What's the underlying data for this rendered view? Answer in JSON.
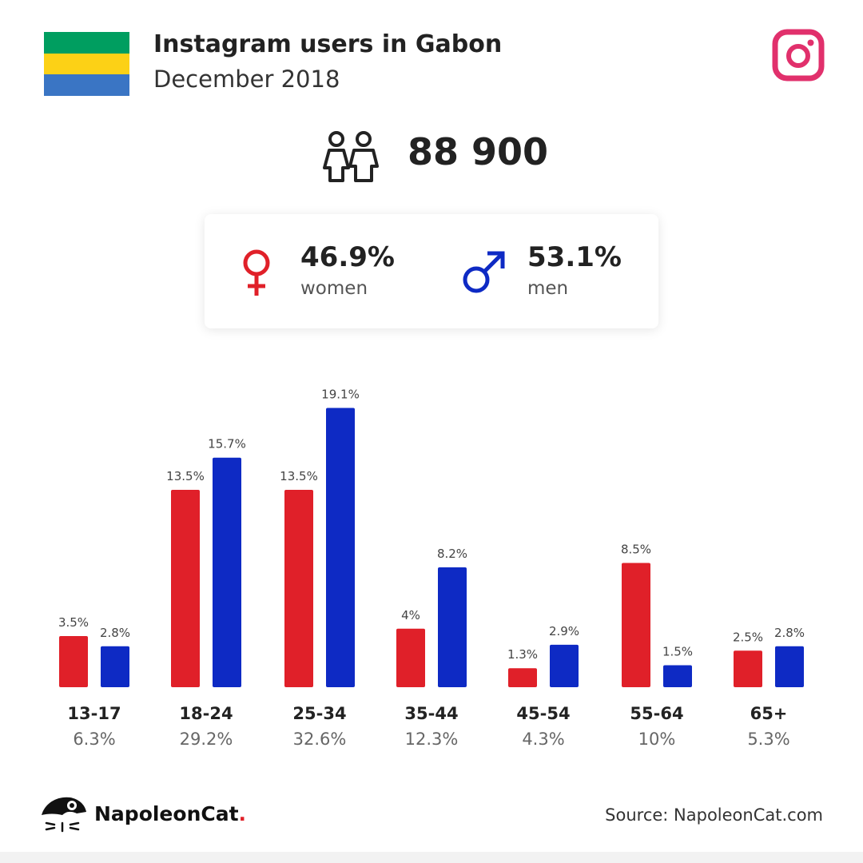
{
  "header": {
    "title": "Instagram users in Gabon",
    "subtitle": "December 2018",
    "flag_colors": [
      "#009e60",
      "#fcd116",
      "#3a75c4"
    ],
    "app_icon": "instagram-icon",
    "app_icon_color": "#e1306c"
  },
  "total": {
    "value": "88 900",
    "icon": "users-icon"
  },
  "gender": {
    "women": {
      "pct": "46.9%",
      "label": "women",
      "icon": "female-icon",
      "color": "#e02029"
    },
    "men": {
      "pct": "53.1%",
      "label": "men",
      "icon": "male-icon",
      "color": "#0e2ac4"
    }
  },
  "chart_data": {
    "type": "bar",
    "categories": [
      "13-17",
      "18-24",
      "25-34",
      "35-44",
      "45-54",
      "55-64",
      "65+"
    ],
    "category_totals": [
      "6.3%",
      "29.2%",
      "32.6%",
      "12.3%",
      "4.3%",
      "10%",
      "5.3%"
    ],
    "series": [
      {
        "name": "women",
        "color": "#e02029",
        "values": [
          3.5,
          13.5,
          13.5,
          4,
          1.3,
          8.5,
          2.5
        ],
        "labels": [
          "3.5%",
          "13.5%",
          "13.5%",
          "4%",
          "1.3%",
          "8.5%",
          "2.5%"
        ]
      },
      {
        "name": "men",
        "color": "#0e2ac4",
        "values": [
          2.8,
          15.7,
          19.1,
          8.2,
          2.9,
          1.5,
          2.8
        ],
        "labels": [
          "2.8%",
          "15.7%",
          "19.1%",
          "8.2%",
          "2.9%",
          "1.5%",
          "2.8%"
        ]
      }
    ],
    "grid": false,
    "legend": "none"
  },
  "footer": {
    "brand_name": "NapoleonCat",
    "brand_dot": ".",
    "brand_icon": "napoleoncat-logo-icon",
    "source": "Source: NapoleonCat.com"
  }
}
